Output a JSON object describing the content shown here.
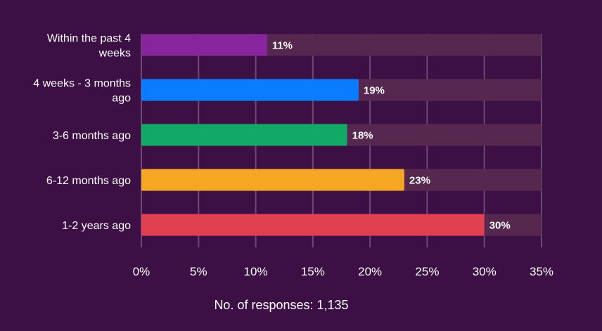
{
  "chart_data": {
    "type": "bar",
    "orientation": "horizontal",
    "categories": [
      "Within the past 4 weeks",
      "4 weeks - 3 months ago",
      "3-6 months ago",
      "6-12 months ago",
      "1-2 years ago"
    ],
    "category_lines": [
      [
        "Within the past 4",
        "weeks"
      ],
      [
        "4 weeks - 3 months",
        "ago"
      ],
      [
        "3-6 months ago"
      ],
      [
        "6-12 months ago"
      ],
      [
        "1-2 years ago"
      ]
    ],
    "values": [
      11,
      19,
      18,
      23,
      30
    ],
    "value_labels": [
      "11%",
      "19%",
      "18%",
      "23%",
      "30%"
    ],
    "bar_colors": [
      "#86259c",
      "#0a7cff",
      "#12a866",
      "#f5a623",
      "#e0404f"
    ],
    "track_color": "#56284f",
    "background_color": "#3d1045",
    "xlim": [
      0,
      35
    ],
    "x_ticks": [
      0,
      5,
      10,
      15,
      20,
      25,
      30,
      35
    ],
    "x_tick_labels": [
      "0%",
      "5%",
      "10%",
      "15%",
      "20%",
      "25%",
      "30%",
      "35%"
    ],
    "grid": true,
    "footnote": "No. of responses: 1,135",
    "title": "",
    "xlabel": "",
    "ylabel": ""
  }
}
